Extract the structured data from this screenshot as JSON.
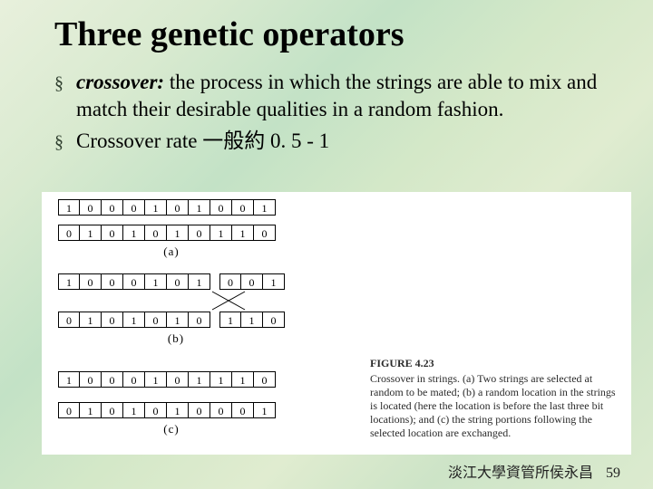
{
  "title": "Three genetic operators",
  "bullets": [
    {
      "term": "crossover:",
      "text": " the process in which the strings are able to mix and match their desirable qualities in a random fashion."
    },
    {
      "term": "",
      "text": "Crossover rate 一般約 0. 5 - 1"
    }
  ],
  "figure": {
    "bg": "#ffffff",
    "cell_border": "#000000",
    "panel_a": {
      "row1": [
        "1",
        "0",
        "0",
        "0",
        "1",
        "0",
        "1",
        "0",
        "0",
        "1"
      ],
      "row2": [
        "0",
        "1",
        "0",
        "1",
        "0",
        "1",
        "0",
        "1",
        "1",
        "0"
      ],
      "label": "(a)"
    },
    "panel_b": {
      "row1": [
        "1",
        "0",
        "0",
        "0",
        "1",
        "0",
        "1",
        "0",
        "0",
        "1"
      ],
      "row2": [
        "0",
        "1",
        "0",
        "1",
        "0",
        "1",
        "0",
        "1",
        "1",
        "0"
      ],
      "label": "(b)",
      "split_index": 7
    },
    "panel_c": {
      "row1": [
        "1",
        "0",
        "0",
        "0",
        "1",
        "0",
        "1",
        "1",
        "1",
        "0"
      ],
      "row2": [
        "0",
        "1",
        "0",
        "1",
        "0",
        "1",
        "0",
        "0",
        "0",
        "1"
      ],
      "label": "(c)"
    },
    "caption_title": "FIGURE 4.23",
    "caption_body": "Crossover in strings. (a) Two strings are selected at random to be mated; (b) a random location in the strings is located (here the location is before the last three bit locations); and (c) the string portions following the selected location are exchanged."
  },
  "footer": {
    "text": "淡江大學資管所侯永昌",
    "page": "59"
  },
  "colors": {
    "text": "#000000",
    "marker": "#2e3e2e"
  }
}
